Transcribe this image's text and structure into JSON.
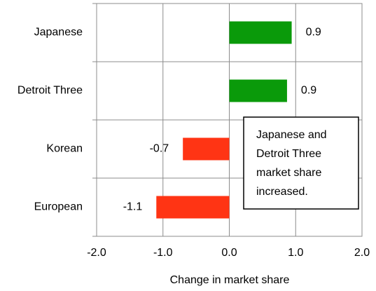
{
  "chart_data": {
    "type": "hbar",
    "categories": [
      "Japanese",
      "Detroit Three",
      "Korean",
      "European"
    ],
    "values": [
      0.94,
      0.87,
      -0.7,
      -1.1
    ],
    "value_labels": [
      "0.9",
      "0.9",
      "-0.7",
      "-1.1"
    ],
    "colors": [
      "#0a9a0a",
      "#0a9a0a",
      "#ff3414",
      "#ff3414"
    ],
    "xlabel": "Change in market share",
    "xlim": [
      -2,
      2
    ],
    "xticks": [
      {
        "value": -2,
        "label": "-2.0"
      },
      {
        "value": -1,
        "label": "-1.0"
      },
      {
        "value": 0,
        "label": "0.0"
      },
      {
        "value": 1,
        "label": "1.0"
      },
      {
        "value": 2,
        "label": "2.0"
      }
    ],
    "grid": true,
    "annotation": [
      "Japanese and",
      "Detroit Three",
      "market share",
      "increased."
    ]
  }
}
